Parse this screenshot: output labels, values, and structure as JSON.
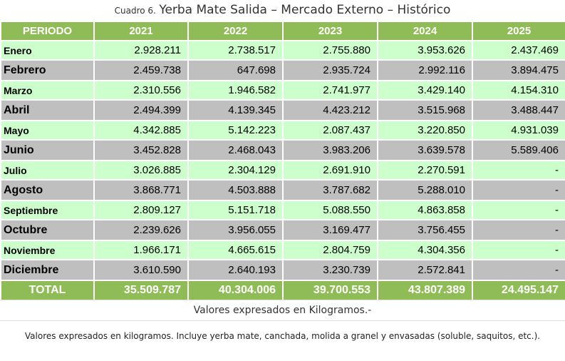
{
  "title": {
    "prefix": "Cuadro 6.",
    "text": "Yerba Mate Salida  – Mercado Externo – Histórico"
  },
  "table": {
    "headers": [
      "PERIODO",
      "2021",
      "2022",
      "2023",
      "2024",
      "2025"
    ],
    "rows": [
      {
        "month": "Enero",
        "values": [
          "2.928.211",
          "2.738.517",
          "2.755.880",
          "3.953.626",
          "2.437.469"
        ]
      },
      {
        "month": "Febrero",
        "values": [
          "2.459.738",
          "647.698",
          "2.935.724",
          "2.992.116",
          "3.894.475"
        ]
      },
      {
        "month": "Marzo",
        "values": [
          "2.310.556",
          "1.946.582",
          "2.741.977",
          "3.429.140",
          "4.154.310"
        ]
      },
      {
        "month": "Abril",
        "values": [
          "2.494.399",
          "4.139.345",
          "4.423.212",
          "3.515.968",
          "3.488.447"
        ]
      },
      {
        "month": "Mayo",
        "values": [
          "4.342.885",
          "5.142.223",
          "2.087.437",
          "3.220.850",
          "4.931.039"
        ]
      },
      {
        "month": "Junio",
        "values": [
          "3.452.828",
          "2.468.043",
          "3.983.206",
          "3.639.578",
          "5.589.406"
        ]
      },
      {
        "month": "Julio",
        "values": [
          "3.026.885",
          "2.304.129",
          "2.691.910",
          "2.270.591",
          "-"
        ]
      },
      {
        "month": "Agosto",
        "values": [
          "3.868.771",
          "4.503.888",
          "3.787.682",
          "5.288.010",
          "-"
        ]
      },
      {
        "month": "Septiembre",
        "values": [
          "2.809.127",
          "5.151.718",
          "5.088.550",
          "4.863.858",
          "-"
        ]
      },
      {
        "month": "Octubre",
        "values": [
          "2.239.626",
          "3.956.055",
          "3.169.477",
          "3.756.455",
          "-"
        ]
      },
      {
        "month": "Noviembre",
        "values": [
          "1.966.171",
          "4.665.615",
          "2.804.759",
          "4.304.356",
          "-"
        ]
      },
      {
        "month": "Diciembre",
        "values": [
          "3.610.590",
          "2.640.193",
          "3.230.739",
          "2.572.841",
          "-"
        ]
      }
    ],
    "total": {
      "label": "TOTAL",
      "values": [
        "35.509.787",
        "40.304.006",
        "39.700.553",
        "43.807.389",
        "24.495.147"
      ]
    }
  },
  "units_note": "Valores expresados en Kilogramos.-",
  "footnote": "Valores expresados en kilogramos. Incluye yerba mate, canchada, molida a granel y envasadas (soluble, saquitos, etc.).",
  "colors": {
    "header_green": "#8fbc56",
    "row_light": "#ccffcc",
    "row_dark": "#bfbfbf"
  }
}
